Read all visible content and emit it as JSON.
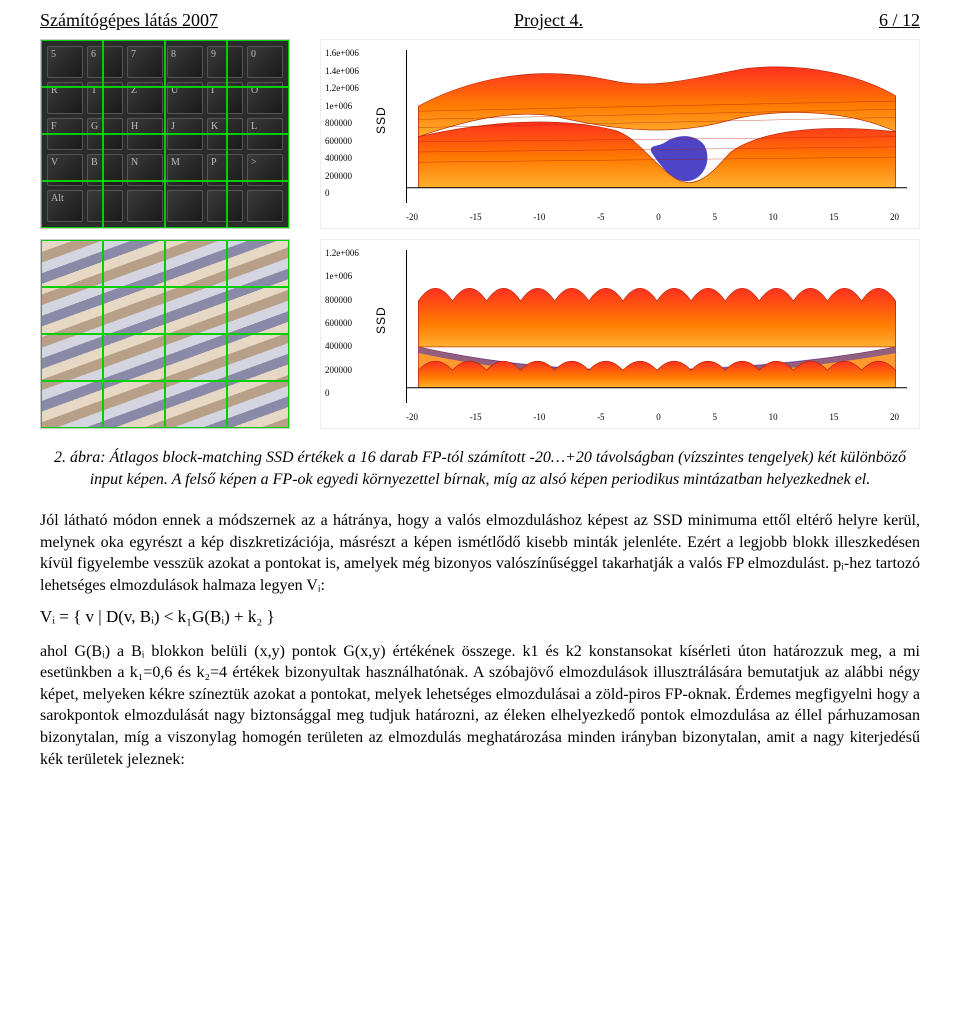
{
  "header": {
    "left": "Számítógépes látás 2007",
    "center": "Project 4.",
    "right": "6 / 12"
  },
  "figures": {
    "top_left": {
      "kind": "keyboard-photo",
      "key_labels": [
        "5",
        "6",
        "7",
        "8",
        "9",
        "0",
        "R",
        "T",
        "Z",
        "U",
        "I",
        "O",
        "F",
        "G",
        "H",
        "J",
        "K",
        "L",
        "V",
        "B",
        "N",
        "M",
        "P",
        ">",
        "Alt",
        "",
        "",
        "",
        "",
        ""
      ],
      "overlay_color": "#00d000"
    },
    "top_right_chart": {
      "type": "3d-surface",
      "ssd_label": "SSD",
      "y_ticks": [
        "1.6e+006",
        "1.4e+006",
        "1.2e+006",
        "1e+006",
        "800000",
        "600000",
        "400000",
        "200000",
        "0"
      ],
      "x_ticks": [
        "-20",
        "-15",
        "-10",
        "-5",
        "0",
        "5",
        "10",
        "15",
        "20"
      ],
      "depth_ticks": [
        "-20",
        "-15",
        "-10",
        "-5",
        "0",
        "5",
        "10",
        "15",
        "20"
      ],
      "surface_colors": {
        "top": "#ff3020",
        "mid": "#ff7a00",
        "wire": "#b02000",
        "dip": "#3a30c0"
      },
      "background_color": "#ffffff",
      "axis_color": "#000000",
      "xlim": [
        -20,
        20
      ],
      "ylim_left": [
        0,
        1600000
      ]
    },
    "bottom_left": {
      "kind": "striped-photo",
      "overlay_color": "#00d000"
    },
    "bottom_right_chart": {
      "type": "3d-surface",
      "ssd_label": "SSD",
      "y_ticks": [
        "1.2e+006",
        "1e+006",
        "800000",
        "600000",
        "400000",
        "200000",
        "0"
      ],
      "x_ticks": [
        "-20",
        "-15",
        "-10",
        "-5",
        "0",
        "5",
        "10",
        "15",
        "20"
      ],
      "depth_ticks": [
        "-20",
        "-15",
        "-10",
        "-5",
        "0",
        "5",
        "10",
        "15",
        "20"
      ],
      "surface_colors": {
        "top": "#ff3020",
        "mid": "#ff7a00",
        "wire": "#b02000",
        "dip": "#3a30c0"
      },
      "background_color": "#ffffff",
      "axis_color": "#000000",
      "xlim": [
        -20,
        20
      ],
      "ylim_left": [
        0,
        1200000
      ]
    }
  },
  "caption": {
    "label": "2. ábra:",
    "text": "Átlagos block-matching SSD értékek a 16 darab FP-tól számított -20…+20 távolságban (vízszintes tengelyek) két különböző input képen. A felső képen a FP-ok egyedi környezettel bírnak, míg az alsó képen periodikus mintázatban helyezkednek el."
  },
  "paragraph1": "Jól látható módon ennek a módszernek az a hátránya, hogy a valós elmozduláshoz képest az SSD minimuma ettől eltérő helyre kerül, melynek oka egyrészt a kép diszkretizációja, másrészt a képen ismétlődő kisebb minták jelenléte. Ezért a legjobb blokk illeszkedésen kívül figyelembe vesszük azokat a pontokat is, amelyek még bizonyos valószínűséggel takarhatják a valós FP elmozdulást. pᵢ-hez tartozó lehetséges elmozdulások halmaza legyen Vᵢ:",
  "formula": "Vᵢ = { v | D(v, Bᵢ) < k₁G(Bᵢ) + k₂ }",
  "paragraph2": "ahol G(Bᵢ) a Bᵢ blokkon belüli (x,y) pontok G(x,y) értékének összege. k1 és k2 konstansokat kísérleti úton határozzuk meg, a mi esetünkben a k₁=0,6 és k₂=4 értékek bizonyultak használhatónak. A szóbajövő elmozdulások illusztrálására bemutatjuk az alábbi négy képet, melyeken kékre színeztük azokat a pontokat, melyek lehetséges elmozdulásai a zöld-piros FP-oknak. Érdemes megfigyelni hogy a sarokpontok elmozdulását nagy biztonsággal meg tudjuk határozni, az éleken elhelyezkedő pontok elmozdulása az éllel párhuzamosan bizonytalan, míg a viszonylag homogén területen az elmozdulás meghatározása minden irányban bizonytalan, amit a nagy kiterjedésű kék területek jeleznek:"
}
